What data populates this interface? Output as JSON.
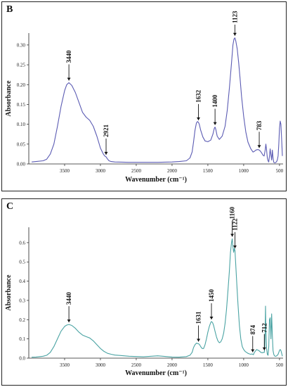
{
  "chart_data": [
    {
      "panel": "B",
      "type": "line",
      "color": "#5b5bb3",
      "xlabel": "Wavenumber (cm⁻¹)",
      "ylabel": "Absorbance",
      "xlim": [
        4000,
        450
      ],
      "ylim": [
        0,
        0.33
      ],
      "x_ticks": [
        3500,
        3000,
        2500,
        2000,
        1500,
        1000,
        500
      ],
      "y_ticks": [
        0.0,
        0.05,
        0.1,
        0.15,
        0.2,
        0.25,
        0.3
      ],
      "y_tick_labels": [
        "0.00",
        "0.05",
        "0.10",
        "0.15",
        "0.20",
        "0.25",
        "0.30"
      ],
      "annotations": [
        {
          "label": "3440",
          "x": 3440,
          "y": 0.205
        },
        {
          "label": "2921",
          "x": 2921,
          "y": 0.018
        },
        {
          "label": "1632",
          "x": 1632,
          "y": 0.105
        },
        {
          "label": "1400",
          "x": 1400,
          "y": 0.093
        },
        {
          "label": "1123",
          "x": 1123,
          "y": 0.318
        },
        {
          "label": "783",
          "x": 783,
          "y": 0.035
        }
      ],
      "series": [
        {
          "x": [
            3960,
            3900,
            3800,
            3750,
            3700,
            3650,
            3600,
            3550,
            3500,
            3470,
            3440,
            3400,
            3350,
            3300,
            3250,
            3200,
            3150,
            3100,
            3050,
            3000,
            2960,
            2940,
            2921,
            2900,
            2880,
            2850,
            2800,
            2600,
            2400,
            2200,
            2000,
            1900,
            1800,
            1750,
            1720,
            1700,
            1680,
            1660,
            1645,
            1632,
            1620,
            1600,
            1570,
            1540,
            1500,
            1460,
            1430,
            1410,
            1400,
            1390,
            1370,
            1340,
            1300,
            1260,
            1230,
            1200,
            1170,
            1150,
            1135,
            1123,
            1110,
            1090,
            1070,
            1050,
            1030,
            1000,
            970,
            940,
            900,
            870,
            850,
            830,
            810,
            795,
            783,
            770,
            750,
            730,
            715,
            700,
            690,
            680,
            670,
            660,
            650,
            640,
            630,
            620,
            610,
            600,
            590,
            580,
            570,
            560,
            550,
            540,
            530,
            520,
            510,
            500,
            490,
            480,
            470,
            460
          ],
          "y": [
            0.005,
            0.006,
            0.008,
            0.012,
            0.025,
            0.05,
            0.095,
            0.145,
            0.185,
            0.2,
            0.205,
            0.198,
            0.18,
            0.155,
            0.13,
            0.118,
            0.11,
            0.095,
            0.07,
            0.04,
            0.025,
            0.02,
            0.018,
            0.012,
            0.008,
            0.006,
            0.005,
            0.004,
            0.004,
            0.004,
            0.005,
            0.006,
            0.008,
            0.015,
            0.03,
            0.055,
            0.085,
            0.103,
            0.107,
            0.105,
            0.1,
            0.085,
            0.068,
            0.058,
            0.056,
            0.06,
            0.075,
            0.09,
            0.093,
            0.088,
            0.07,
            0.062,
            0.07,
            0.095,
            0.135,
            0.19,
            0.255,
            0.3,
            0.315,
            0.318,
            0.31,
            0.29,
            0.255,
            0.215,
            0.17,
            0.12,
            0.08,
            0.055,
            0.038,
            0.03,
            0.032,
            0.035,
            0.036,
            0.036,
            0.035,
            0.033,
            0.028,
            0.022,
            0.02,
            0.035,
            0.05,
            0.035,
            0.015,
            0.008,
            0.005,
            0.02,
            0.038,
            0.022,
            0.01,
            0.035,
            0.015,
            0.004,
            0.003,
            0.003,
            0.004,
            0.006,
            0.01,
            0.02,
            0.05,
            0.09,
            0.108,
            0.1,
            0.06,
            0.02
          ]
        }
      ]
    },
    {
      "panel": "C",
      "type": "line",
      "color": "#4aa3a3",
      "xlabel": "Wavenumber (cm⁻¹)",
      "ylabel": "Absorbance",
      "xlim": [
        4000,
        450
      ],
      "ylim": [
        0,
        0.68
      ],
      "x_ticks": [
        3500,
        3000,
        2500,
        2000,
        1500,
        1000,
        500
      ],
      "y_ticks": [
        0.0,
        0.1,
        0.2,
        0.3,
        0.4,
        0.5,
        0.6
      ],
      "y_tick_labels": [
        "0.0",
        "0.1",
        "0.2",
        "0.3",
        "0.4",
        "0.5",
        "0.6"
      ],
      "annotations": [
        {
          "label": "3440",
          "x": 3440,
          "y": 0.175
        },
        {
          "label": "1631",
          "x": 1631,
          "y": 0.075
        },
        {
          "label": "1450",
          "x": 1450,
          "y": 0.19
        },
        {
          "label": "1160",
          "x": 1160,
          "y": 0.62
        },
        {
          "label": "1122",
          "x": 1122,
          "y": 0.56
        },
        {
          "label": "874",
          "x": 874,
          "y": 0.02
        },
        {
          "label": "712",
          "x": 712,
          "y": 0.03
        }
      ],
      "series": [
        {
          "x": [
            3960,
            3900,
            3800,
            3750,
            3700,
            3650,
            3600,
            3550,
            3500,
            3470,
            3440,
            3400,
            3350,
            3300,
            3250,
            3200,
            3150,
            3100,
            3050,
            3000,
            2950,
            2900,
            2850,
            2800,
            2600,
            2400,
            2200,
            2000,
            1900,
            1800,
            1750,
            1720,
            1700,
            1680,
            1660,
            1645,
            1631,
            1615,
            1600,
            1580,
            1560,
            1540,
            1520,
            1500,
            1480,
            1460,
            1450,
            1435,
            1420,
            1400,
            1380,
            1360,
            1340,
            1320,
            1300,
            1280,
            1260,
            1240,
            1220,
            1200,
            1185,
            1170,
            1160,
            1150,
            1140,
            1130,
            1122,
            1110,
            1095,
            1080,
            1060,
            1040,
            1020,
            1000,
            980,
            960,
            940,
            920,
            900,
            885,
            874,
            865,
            850,
            820,
            790,
            760,
            740,
            725,
            712,
            705,
            700,
            695,
            690,
            680,
            670,
            660,
            650,
            640,
            630,
            620,
            610,
            600,
            590,
            580,
            570,
            560,
            550,
            540,
            530,
            520,
            510,
            500,
            490,
            480,
            470,
            460
          ],
          "y": [
            0.005,
            0.006,
            0.01,
            0.015,
            0.03,
            0.06,
            0.1,
            0.14,
            0.165,
            0.172,
            0.175,
            0.17,
            0.155,
            0.135,
            0.12,
            0.112,
            0.105,
            0.09,
            0.07,
            0.05,
            0.035,
            0.025,
            0.02,
            0.016,
            0.01,
            0.007,
            0.012,
            0.006,
            0.005,
            0.008,
            0.015,
            0.03,
            0.055,
            0.07,
            0.078,
            0.076,
            0.075,
            0.07,
            0.06,
            0.05,
            0.05,
            0.07,
            0.1,
            0.135,
            0.165,
            0.185,
            0.19,
            0.185,
            0.17,
            0.14,
            0.11,
            0.09,
            0.08,
            0.085,
            0.1,
            0.13,
            0.18,
            0.25,
            0.35,
            0.45,
            0.55,
            0.6,
            0.62,
            0.58,
            0.55,
            0.57,
            0.56,
            0.48,
            0.38,
            0.28,
            0.17,
            0.1,
            0.06,
            0.045,
            0.035,
            0.03,
            0.025,
            0.022,
            0.02,
            0.022,
            0.02,
            0.018,
            0.03,
            0.045,
            0.04,
            0.03,
            0.028,
            0.03,
            0.03,
            0.06,
            0.15,
            0.27,
            0.15,
            0.05,
            0.02,
            0.015,
            0.06,
            0.2,
            0.21,
            0.1,
            0.23,
            0.12,
            0.04,
            0.02,
            0.012,
            0.01,
            0.01,
            0.012,
            0.015,
            0.02,
            0.03,
            0.04,
            0.045,
            0.04,
            0.025,
            0.01
          ]
        }
      ]
    }
  ]
}
